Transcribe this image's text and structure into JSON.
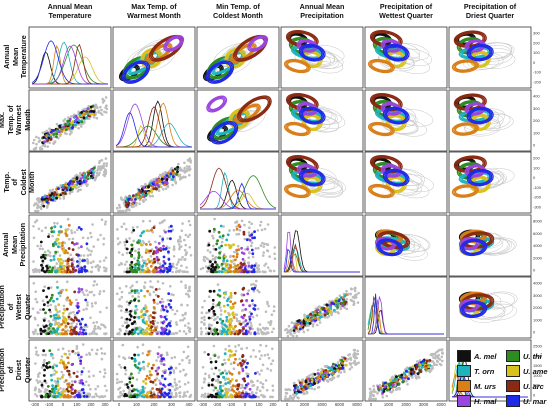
{
  "chart_data": {
    "type": "scatter",
    "variables": [
      "Annual Mean Temperature",
      "Max Temp. of Warmest Month",
      "Min Temp. of Coldest Month",
      "Annual Mean Precipitation",
      "Precipitation of Wettest Quarter",
      "Precipitation of Driest Quarter"
    ],
    "column_titles": [
      "Annual Mean\nTemperature",
      "Max Temp. of\nWarmest Month",
      "Min Temp. of\nColdest Month",
      "Annual Mean\nPrecipitation",
      "Precipitation of\nWettest Quarter",
      "Precipitation of\nDriest Quarter"
    ],
    "row_titles": [
      "Annual Mean\nTemperature",
      "Max. Temp. of\nWarmest Month",
      "Min. Temp. of\nColdest Month",
      "Annual Mean\nPrecipitation",
      "Precipitation of\nWettest Quarter",
      "Precipitation of\nDriest Quarter"
    ],
    "bottom_tick_labels": [
      [
        "-200",
        "-100",
        "0",
        "100",
        "200",
        "300"
      ],
      [
        "0",
        "100",
        "200",
        "300",
        "400"
      ],
      [
        "-300",
        "-200",
        "-100",
        "0",
        "100",
        "200"
      ],
      [
        "0",
        "2000",
        "4000",
        "6000",
        "8000"
      ],
      [
        "0",
        "1000",
        "2000",
        "3000",
        "4000"
      ],
      []
    ],
    "right_tick_labels": [
      [
        "300",
        "200",
        "100",
        "0",
        "-100",
        "-200"
      ],
      [
        "400",
        "300",
        "200",
        "100",
        "0"
      ],
      [
        "200",
        "100",
        "0",
        "-100",
        "-200",
        "-300"
      ],
      [
        "8000",
        "6000",
        "4000",
        "2000",
        "0"
      ],
      [
        "4000",
        "3000",
        "2000",
        "1000",
        "0"
      ],
      [
        "2500",
        "2000",
        "1500",
        "1000",
        "500",
        "0"
      ]
    ],
    "series": [
      {
        "name": "A. mel",
        "color": "#111111"
      },
      {
        "name": "U. thi",
        "color": "#2e8b1f"
      },
      {
        "name": "T. orn",
        "color": "#1fb3c0"
      },
      {
        "name": "U. ame",
        "color": "#d9c21b"
      },
      {
        "name": "M. urs",
        "color": "#d97f1a"
      },
      {
        "name": "U. arc",
        "color": "#8b2a12"
      },
      {
        "name": "H. mal",
        "color": "#9b45e0"
      },
      {
        "name": "U. mar",
        "color": "#1f2ae8"
      }
    ],
    "background_points_color": "#bdbdbd",
    "grid": false,
    "legend_position": "bottom-right"
  }
}
